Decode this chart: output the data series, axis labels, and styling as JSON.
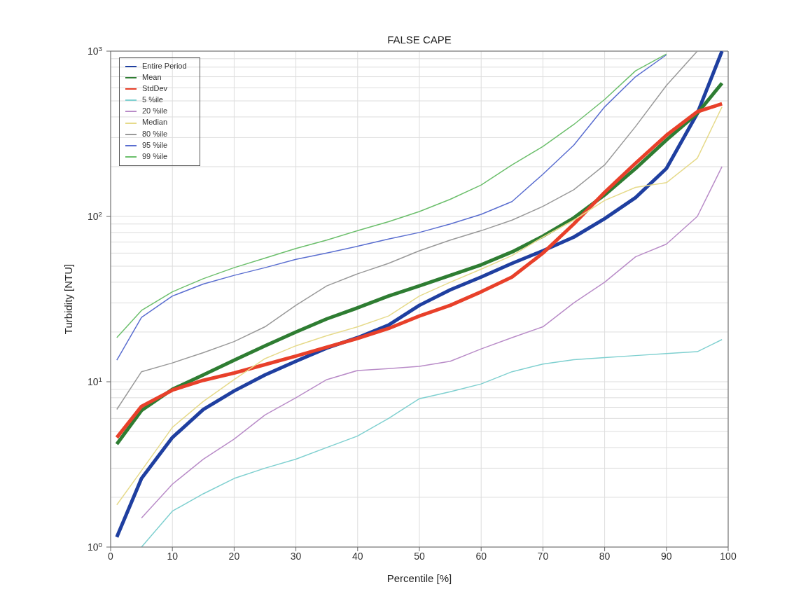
{
  "chart_data": {
    "type": "line",
    "title": "FALSE CAPE",
    "xlabel": "Percentile [%]",
    "ylabel": "Turbidity [NTU]",
    "x": [
      1,
      5,
      10,
      15,
      20,
      25,
      30,
      35,
      40,
      45,
      50,
      55,
      60,
      65,
      70,
      75,
      80,
      85,
      90,
      95,
      99
    ],
    "series": [
      {
        "name": "Entire Period",
        "color": "#1f3fa0",
        "values": [
          1.15,
          2.6,
          4.6,
          6.8,
          8.8,
          11,
          13.3,
          16,
          18.5,
          22,
          29,
          36,
          43,
          52,
          62,
          75,
          97,
          130,
          195,
          420,
          1000
        ]
      },
      {
        "name": "Mean",
        "color": "#2e7d32",
        "values": [
          4.2,
          6.7,
          9,
          11,
          13.5,
          16.5,
          20,
          24,
          28,
          33,
          38,
          44,
          51,
          61,
          76,
          98,
          135,
          195,
          290,
          420,
          640
        ]
      },
      {
        "name": "StdDev",
        "color": "#e8402a",
        "values": [
          4.6,
          7.1,
          8.9,
          10.2,
          11.3,
          12.7,
          14.3,
          16.2,
          18.3,
          21,
          25,
          29,
          35,
          43,
          60,
          90,
          140,
          210,
          310,
          430,
          480
        ]
      },
      {
        "name": "5 %ile",
        "color": "#7fd0d0",
        "values": [
          null,
          1.0,
          1.65,
          2.1,
          2.6,
          3.0,
          3.4,
          4.0,
          4.7,
          6.0,
          7.9,
          8.7,
          9.7,
          11.5,
          12.8,
          13.6,
          14.0,
          14.4,
          14.8,
          15.2,
          18
        ]
      },
      {
        "name": "20 %ile",
        "color": "#b98cc8",
        "values": [
          null,
          1.5,
          2.4,
          3.4,
          4.5,
          6.3,
          8,
          10.3,
          11.7,
          12,
          12.4,
          13.3,
          15.8,
          18.5,
          21.5,
          30,
          40,
          57,
          68,
          100,
          200
        ]
      },
      {
        "name": "Median",
        "color": "#e6da8a",
        "values": [
          1.8,
          2.9,
          5.3,
          7.6,
          10.3,
          13.8,
          16.5,
          19,
          21.5,
          25,
          33,
          40,
          48,
          58,
          75,
          95,
          125,
          150,
          160,
          225,
          460
        ]
      },
      {
        "name": "80 %ile",
        "color": "#999999",
        "values": [
          6.8,
          11.5,
          13,
          15,
          17.5,
          21.5,
          29,
          38,
          45,
          52,
          62,
          72,
          82,
          95,
          115,
          145,
          205,
          350,
          620,
          1000,
          null
        ]
      },
      {
        "name": "95 %ile",
        "color": "#5a6ed0",
        "values": [
          13.5,
          24.5,
          33,
          39,
          44,
          49,
          55,
          60,
          66,
          73,
          80,
          90,
          103,
          123,
          180,
          270,
          460,
          700,
          950,
          null,
          null
        ]
      },
      {
        "name": "99 %ile",
        "color": "#6cbf6c",
        "values": [
          18.5,
          27,
          35,
          42,
          49,
          56,
          64,
          72,
          82,
          93,
          107,
          127,
          155,
          205,
          265,
          360,
          510,
          760,
          960,
          null,
          null
        ]
      }
    ],
    "xlim": [
      0,
      100
    ],
    "xticks": [
      0,
      10,
      20,
      30,
      40,
      50,
      60,
      70,
      80,
      90,
      100
    ],
    "ylim": [
      1,
      1000
    ],
    "yticks": [
      {
        "value": 1,
        "label": "10$^{0}$"
      },
      {
        "value": 10,
        "label": "10$^{1}$"
      },
      {
        "value": 100,
        "label": "10$^{2}$"
      },
      {
        "value": 1000,
        "label": "10$^{3}$"
      }
    ],
    "log": true,
    "grid": true,
    "legend": "top left",
    "marker": "none",
    "line_style": "solid"
  }
}
